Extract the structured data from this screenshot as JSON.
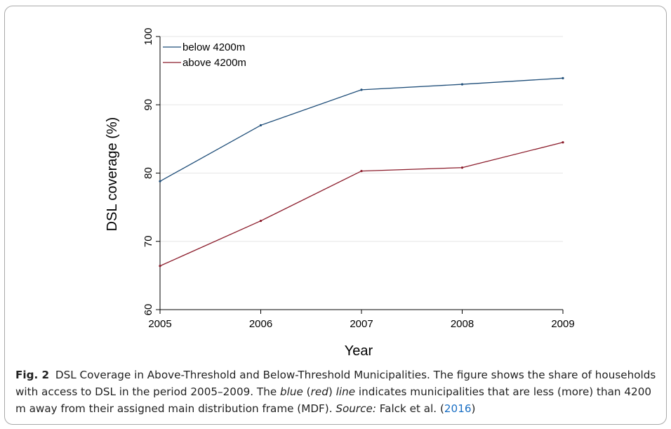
{
  "chart_data": {
    "type": "line",
    "xlabel": "Year",
    "ylabel": "DSL coverage (%)",
    "x": [
      2005,
      2006,
      2007,
      2008,
      2009
    ],
    "xticks": [
      "2005",
      "2006",
      "2007",
      "2008",
      "2009"
    ],
    "yticks": [
      "60",
      "70",
      "80",
      "90",
      "100"
    ],
    "ylim": [
      60,
      100
    ],
    "xlim": [
      2005,
      2009
    ],
    "grid": "horizontal",
    "legend_position": "top-left",
    "series": [
      {
        "name": "below 4200m",
        "color": "#1f4e79",
        "values": [
          78.8,
          87.0,
          92.2,
          93.0,
          93.9
        ]
      },
      {
        "name": "above 4200m",
        "color": "#8b1c2b",
        "values": [
          66.4,
          73.0,
          80.3,
          80.8,
          84.5
        ]
      }
    ]
  },
  "caption": {
    "fig_label": "Fig. 2",
    "title_text": "DSL Coverage in Above-Threshold and Below-Threshold Municipalities. The figure shows the share of households with access to DSL in the period 2005–2009. The ",
    "blue_word": "blue",
    "paren_open": " (",
    "red_word": "red",
    "paren_close": ") ",
    "line_word": "line",
    "rest_text": " indicates municipalities that are less (more) than 4200 m away from their assigned main distribution frame (MDF). ",
    "source_label": "Source:",
    "source_text": " Falck et al. (",
    "source_year": "2016",
    "source_close": ")"
  }
}
